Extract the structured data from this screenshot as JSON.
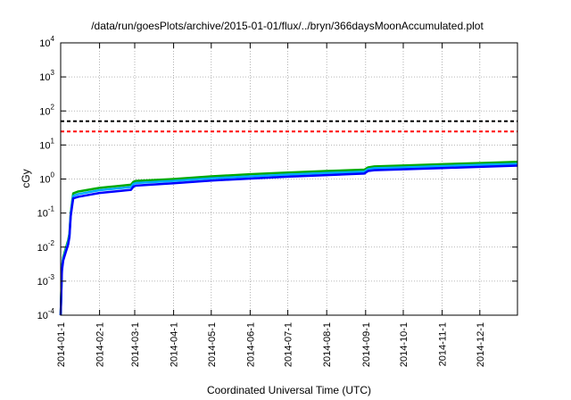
{
  "chart_data": {
    "type": "line",
    "title": "/data/run/goesPlots/archive/2015-01-01/flux/../bryn/366daysMoonAccumulated.plot",
    "xlabel": "Coordinated Universal Time (UTC)",
    "ylabel": "cGy",
    "xlim": [
      "2014-01-01",
      "2014-12-31"
    ],
    "ylim": [
      0.0001,
      10000
    ],
    "yscale": "log",
    "grid": true,
    "xticks": [
      "2014-01-1",
      "2014-02-1",
      "2014-03-1",
      "2014-04-1",
      "2014-05-1",
      "2014-06-1",
      "2014-07-1",
      "2014-08-1",
      "2014-09-1",
      "2014-10-1",
      "2014-11-1",
      "2014-12-1"
    ],
    "yticks": [
      {
        "base": "10",
        "exp": "-4",
        "value": 0.0001
      },
      {
        "base": "10",
        "exp": "-3",
        "value": 0.001
      },
      {
        "base": "10",
        "exp": "-2",
        "value": 0.01
      },
      {
        "base": "10",
        "exp": "-1",
        "value": 0.1
      },
      {
        "base": "10",
        "exp": "0",
        "value": 1
      },
      {
        "base": "10",
        "exp": "1",
        "value": 10
      },
      {
        "base": "10",
        "exp": "2",
        "value": 100
      },
      {
        "base": "10",
        "exp": "3",
        "value": 1000
      },
      {
        "base": "10",
        "exp": "4",
        "value": 10000
      }
    ],
    "reference_lines": [
      {
        "value": 50,
        "color": "#000000",
        "style": "dashed"
      },
      {
        "value": 25,
        "color": "#ff0000",
        "style": "dashed"
      }
    ],
    "series": [
      {
        "color": "#00aa00",
        "points": [
          [
            "2014-01-01",
            0.0001
          ],
          [
            "2014-01-02",
            0.0025
          ],
          [
            "2014-01-03",
            0.005
          ],
          [
            "2014-01-05",
            0.009
          ],
          [
            "2014-01-07",
            0.016
          ],
          [
            "2014-01-08",
            0.025
          ],
          [
            "2014-01-09",
            0.1
          ],
          [
            "2014-01-10",
            0.2
          ],
          [
            "2014-01-11",
            0.38
          ],
          [
            "2014-01-15",
            0.43
          ],
          [
            "2014-02-01",
            0.55
          ],
          [
            "2014-02-26",
            0.68
          ],
          [
            "2014-02-28",
            0.83
          ],
          [
            "2014-03-02",
            0.88
          ],
          [
            "2014-04-01",
            1.0
          ],
          [
            "2014-05-01",
            1.2
          ],
          [
            "2014-06-01",
            1.38
          ],
          [
            "2014-07-01",
            1.55
          ],
          [
            "2014-08-01",
            1.72
          ],
          [
            "2014-08-31",
            1.88
          ],
          [
            "2014-09-03",
            2.2
          ],
          [
            "2014-09-08",
            2.35
          ],
          [
            "2014-10-01",
            2.5
          ],
          [
            "2014-11-01",
            2.72
          ],
          [
            "2014-12-01",
            2.95
          ],
          [
            "2014-12-31",
            3.2
          ]
        ]
      },
      {
        "color": "#00aaff",
        "points": [
          [
            "2014-01-01",
            0.0001
          ],
          [
            "2014-01-02",
            0.0023
          ],
          [
            "2014-01-03",
            0.0045
          ],
          [
            "2014-01-05",
            0.008
          ],
          [
            "2014-01-07",
            0.014
          ],
          [
            "2014-01-08",
            0.022
          ],
          [
            "2014-01-09",
            0.09
          ],
          [
            "2014-01-10",
            0.18
          ],
          [
            "2014-01-11",
            0.32
          ],
          [
            "2014-01-15",
            0.36
          ],
          [
            "2014-02-01",
            0.47
          ],
          [
            "2014-02-26",
            0.58
          ],
          [
            "2014-02-28",
            0.72
          ],
          [
            "2014-03-02",
            0.76
          ],
          [
            "2014-04-01",
            0.88
          ],
          [
            "2014-05-01",
            1.05
          ],
          [
            "2014-06-01",
            1.2
          ],
          [
            "2014-07-01",
            1.35
          ],
          [
            "2014-08-01",
            1.5
          ],
          [
            "2014-08-31",
            1.65
          ],
          [
            "2014-09-03",
            1.95
          ],
          [
            "2014-09-08",
            2.08
          ],
          [
            "2014-10-01",
            2.2
          ],
          [
            "2014-11-01",
            2.4
          ],
          [
            "2014-12-01",
            2.6
          ],
          [
            "2014-12-31",
            2.8
          ]
        ]
      },
      {
        "color": "#0000ff",
        "points": [
          [
            "2014-01-01",
            0.0001
          ],
          [
            "2014-01-02",
            0.002
          ],
          [
            "2014-01-03",
            0.004
          ],
          [
            "2014-01-05",
            0.007
          ],
          [
            "2014-01-07",
            0.012
          ],
          [
            "2014-01-08",
            0.02
          ],
          [
            "2014-01-09",
            0.08
          ],
          [
            "2014-01-10",
            0.15
          ],
          [
            "2014-01-11",
            0.27
          ],
          [
            "2014-01-15",
            0.3
          ],
          [
            "2014-02-01",
            0.39
          ],
          [
            "2014-02-26",
            0.48
          ],
          [
            "2014-02-28",
            0.6
          ],
          [
            "2014-03-02",
            0.64
          ],
          [
            "2014-04-01",
            0.75
          ],
          [
            "2014-05-01",
            0.9
          ],
          [
            "2014-06-01",
            1.03
          ],
          [
            "2014-07-01",
            1.17
          ],
          [
            "2014-08-01",
            1.3
          ],
          [
            "2014-08-31",
            1.45
          ],
          [
            "2014-09-03",
            1.72
          ],
          [
            "2014-09-08",
            1.82
          ],
          [
            "2014-10-01",
            1.93
          ],
          [
            "2014-11-01",
            2.1
          ],
          [
            "2014-12-01",
            2.28
          ],
          [
            "2014-12-31",
            2.48
          ]
        ]
      }
    ]
  }
}
